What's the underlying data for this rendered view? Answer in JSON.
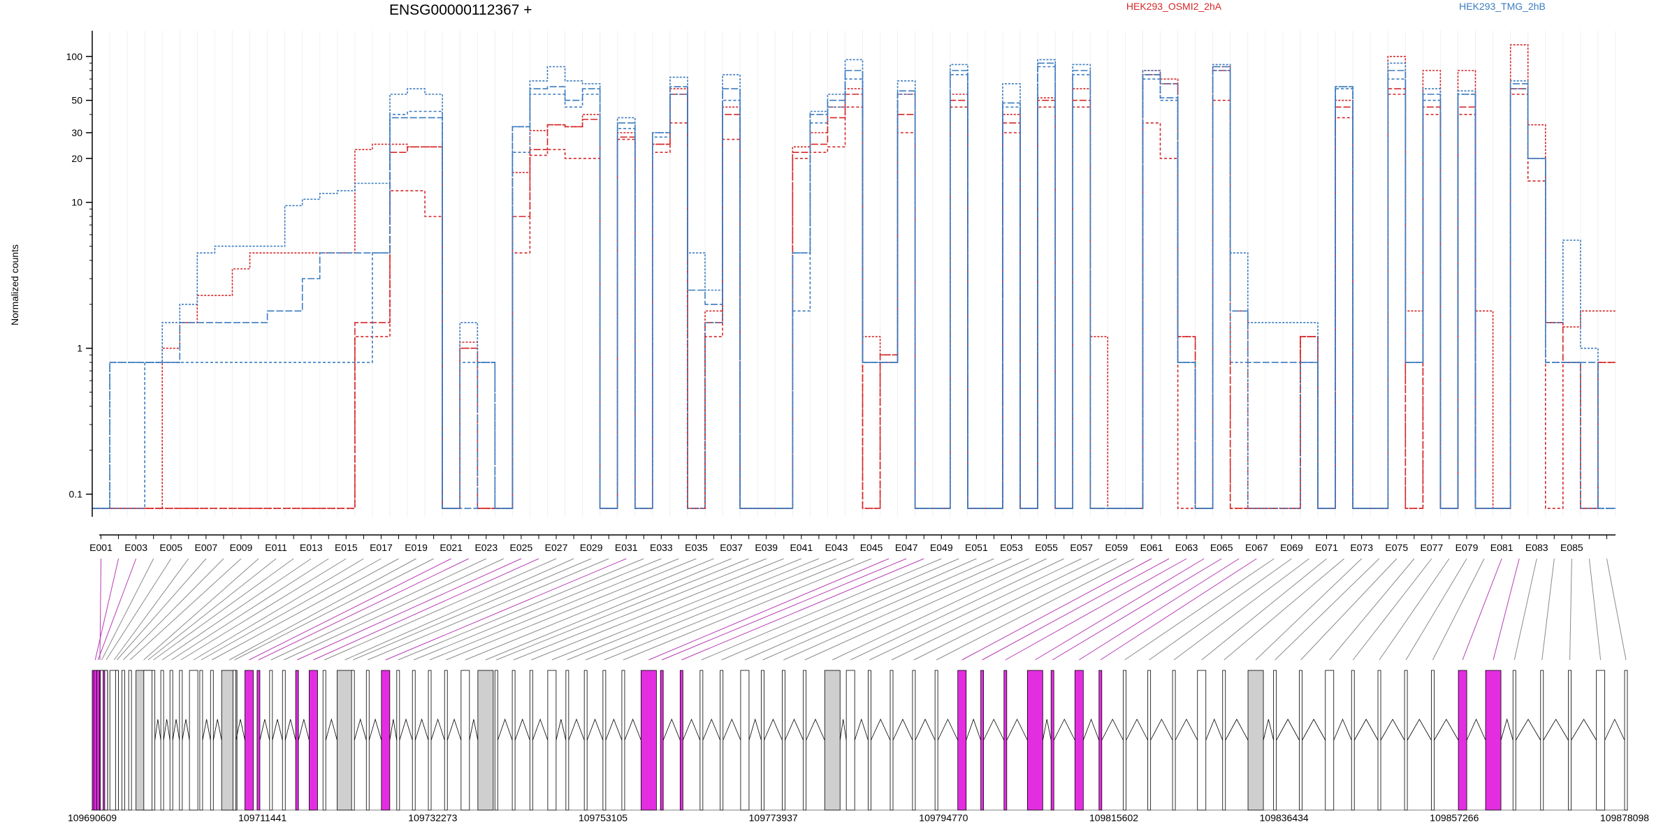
{
  "chart_data": {
    "type": "line",
    "title": "ENSG00000112367 +",
    "ylabel": "Normalized counts",
    "yscale": "log",
    "ylim": [
      0.07,
      150
    ],
    "y_ticks": [
      0.1,
      1,
      10,
      20,
      30,
      50,
      100
    ],
    "y_tick_labels": [
      "0.1",
      "1",
      "10",
      "20",
      "30",
      "50",
      "100"
    ],
    "exon_tick_labels": [
      "E001",
      "E003",
      "E005",
      "E007",
      "E009",
      "E011",
      "E013",
      "E015",
      "E017",
      "E019",
      "E021",
      "E023",
      "E025",
      "E027",
      "E029",
      "E031",
      "E033",
      "E035",
      "E037",
      "E039",
      "E041",
      "E043",
      "E045",
      "E047",
      "E049",
      "E051",
      "E053",
      "E055",
      "E057",
      "E059",
      "E061",
      "E063",
      "E065",
      "E067",
      "E069",
      "E071",
      "E073",
      "E075",
      "E077",
      "E079",
      "E081",
      "E083",
      "E085"
    ],
    "exon_count": 87,
    "legend": [
      {
        "name": "HEK293_OSMI2_2hA",
        "color": "#d62728"
      },
      {
        "name": "HEK293_TMG_2hB",
        "color": "#3b7bbf"
      }
    ],
    "legend_placement": "top-right",
    "series": [
      {
        "group": 0,
        "color": "#d62728",
        "values": [
          0.08,
          0.08,
          0.08,
          0.08,
          0.08,
          0.08,
          0.08,
          0.08,
          0.08,
          0.08,
          0.08,
          0.08,
          0.08,
          0.08,
          0.08,
          1.2,
          1.2,
          12,
          12,
          8,
          0.08,
          1,
          0.08,
          0.08,
          4.5,
          21,
          23,
          20,
          20,
          0.08,
          27,
          0.08,
          22,
          35,
          0.08,
          1.2,
          27,
          0.08,
          0.08,
          0.08,
          20,
          22,
          24,
          45,
          0.08,
          0.8,
          30,
          0.08,
          0.08,
          45,
          0.08,
          0.08,
          30,
          0.08,
          45,
          0.08,
          45,
          0.08,
          0.08,
          0.08,
          35,
          20,
          0.08,
          0.08,
          50,
          0.08,
          0.08,
          0.08,
          0.08,
          1.2,
          0.08,
          38,
          0.08,
          0.08,
          55,
          0.08,
          40,
          0.08,
          40,
          0.08,
          0.08,
          55,
          14,
          0.08,
          0.8,
          0.08,
          0.8
        ]
      },
      {
        "group": 0,
        "color": "#d62728",
        "values": [
          0.08,
          0.08,
          0.08,
          0.08,
          0.08,
          0.08,
          0.08,
          0.08,
          0.08,
          0.08,
          0.08,
          0.08,
          0.08,
          0.08,
          0.08,
          1.5,
          1.5,
          22,
          24,
          24,
          0.08,
          1,
          0.08,
          0.08,
          8,
          23,
          34,
          33,
          37,
          0.08,
          28,
          0.08,
          25,
          55,
          0.08,
          1.5,
          40,
          0.08,
          0.08,
          0.08,
          22,
          25,
          38,
          55,
          0.08,
          0.9,
          40,
          0.08,
          0.08,
          50,
          0.08,
          0.08,
          35,
          0.08,
          50,
          0.08,
          50,
          0.08,
          0.08,
          0.08,
          75,
          65,
          1.2,
          0.08,
          80,
          0.08,
          0.08,
          0.08,
          0.08,
          1.2,
          0.08,
          45,
          0.08,
          0.08,
          60,
          0.08,
          45,
          0.08,
          45,
          0.08,
          0.08,
          60,
          20,
          1.5,
          0.8,
          0.08,
          0.8
        ]
      },
      {
        "group": 0,
        "color": "#d62728",
        "values": [
          0.08,
          0.08,
          0.08,
          0.08,
          1,
          1.5,
          2.3,
          2.3,
          3.5,
          4.5,
          4.5,
          4.5,
          4.5,
          4.5,
          4.5,
          23,
          25,
          25,
          24,
          24,
          0.08,
          1.1,
          0.08,
          0.08,
          16,
          31,
          34,
          33,
          40,
          0.08,
          30,
          0.08,
          25,
          60,
          0.08,
          1.8,
          45,
          0.08,
          0.08,
          0.08,
          24,
          30,
          45,
          60,
          1.2,
          0.9,
          55,
          0.08,
          0.08,
          55,
          0.08,
          0.08,
          40,
          0.08,
          52,
          0.08,
          60,
          1.2,
          0.08,
          0.08,
          80,
          70,
          1.2,
          0.08,
          85,
          1.8,
          0.08,
          0.08,
          0.08,
          1.2,
          0.08,
          50,
          0.08,
          0.08,
          100,
          1.8,
          80,
          0.08,
          80,
          1.8,
          0.08,
          120,
          34,
          1.5,
          1.4,
          1.8,
          1.8
        ]
      },
      {
        "group": 1,
        "color": "#3b7bbf",
        "values": [
          0.08,
          0.08,
          0.08,
          0.8,
          0.8,
          0.8,
          0.8,
          0.8,
          0.8,
          0.8,
          0.8,
          0.8,
          0.8,
          0.8,
          0.8,
          0.8,
          4.5,
          40,
          42,
          42,
          0.08,
          0.8,
          0.8,
          0.08,
          22,
          55,
          55,
          45,
          55,
          0.08,
          32,
          0.08,
          28,
          55,
          0.08,
          1.5,
          50,
          0.08,
          0.08,
          0.08,
          1.8,
          35,
          45,
          70,
          0.8,
          0.8,
          55,
          0.08,
          0.08,
          75,
          0.08,
          0.08,
          45,
          0.08,
          85,
          0.08,
          75,
          0.08,
          0.08,
          0.08,
          70,
          50,
          0.8,
          0.08,
          80,
          0.8,
          0.08,
          0.08,
          0.08,
          0.8,
          0.08,
          60,
          0.08,
          0.08,
          70,
          0.8,
          50,
          0.08,
          55,
          0.08,
          0.08,
          60,
          20,
          0.8,
          0.8,
          0.08,
          0.08
        ]
      },
      {
        "group": 1,
        "color": "#3b7bbf",
        "values": [
          0.08,
          0.8,
          0.8,
          0.8,
          0.8,
          1.5,
          1.5,
          1.5,
          1.5,
          1.5,
          1.8,
          1.8,
          3,
          4.5,
          4.5,
          4.5,
          4.5,
          38,
          38,
          38,
          0.08,
          0.08,
          0.8,
          0.08,
          33,
          60,
          62,
          50,
          60,
          0.08,
          35,
          0.08,
          30,
          62,
          2.5,
          2,
          60,
          0.08,
          0.08,
          0.08,
          4.5,
          40,
          50,
          80,
          0.8,
          0.8,
          58,
          0.08,
          0.08,
          80,
          0.08,
          0.08,
          48,
          0.08,
          90,
          0.08,
          80,
          0.08,
          0.08,
          0.08,
          75,
          52,
          0.8,
          0.08,
          85,
          1.8,
          0.8,
          0.8,
          0.8,
          0.8,
          0.08,
          62,
          0.08,
          0.08,
          80,
          0.8,
          55,
          0.08,
          55,
          0.08,
          0.08,
          65,
          20,
          0.8,
          0.8,
          0.8,
          0.08
        ]
      },
      {
        "group": 1,
        "color": "#3b7bbf",
        "values": [
          0.08,
          0.8,
          0.8,
          0.8,
          1.5,
          2,
          4.5,
          5,
          5,
          5,
          5,
          9.5,
          10.5,
          11.5,
          12,
          13.5,
          13.5,
          55,
          60,
          55,
          0.08,
          1.5,
          0.8,
          0.08,
          33,
          68,
          85,
          68,
          65,
          0.08,
          38,
          0.08,
          30,
          72,
          4.5,
          2.5,
          75,
          0.08,
          0.08,
          0.08,
          4.5,
          42,
          55,
          95,
          0.8,
          0.8,
          68,
          0.08,
          0.08,
          88,
          0.08,
          0.08,
          65,
          0.08,
          95,
          0.08,
          88,
          0.08,
          0.08,
          0.08,
          80,
          65,
          0.8,
          0.08,
          88,
          4.5,
          1.5,
          1.5,
          1.5,
          1.5,
          0.08,
          62,
          0.08,
          0.08,
          90,
          0.8,
          60,
          0.08,
          58,
          0.08,
          0.08,
          68,
          20,
          1.5,
          5.5,
          1,
          0.08
        ]
      }
    ],
    "genomic_tick_labels": [
      "109690609",
      "109711441",
      "109732273",
      "109753105",
      "109773937",
      "109794770",
      "109815602",
      "109836434",
      "109857266",
      "109878098"
    ],
    "highlight_color": "#e22ee0"
  }
}
